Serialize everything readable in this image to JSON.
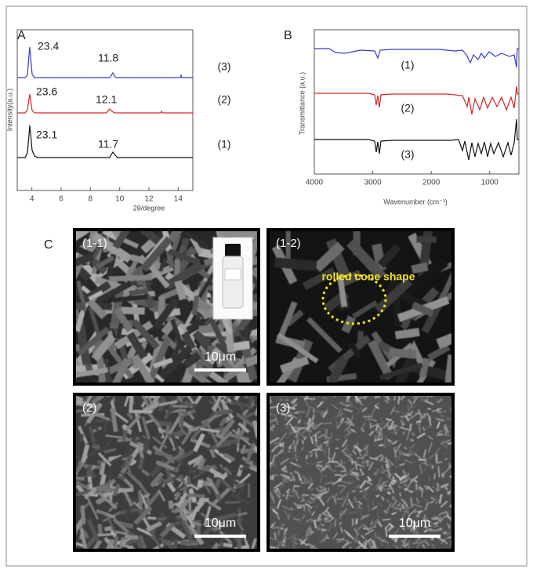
{
  "panel_a": {
    "label": "A",
    "x_label": "2θ/degree",
    "y_label": "Intensity(a.u.)",
    "xlim": [
      3,
      15
    ],
    "xticks": [
      4,
      6,
      8,
      10,
      12,
      14
    ],
    "annotations": [
      "23.4",
      "11.8",
      "(3)",
      "23.6",
      "12.1",
      "(2)",
      "23.1",
      "11.7",
      "(1)"
    ]
  },
  "panel_b": {
    "label": "B",
    "x_label": "Wavenumber (cm⁻¹)",
    "y_label": "Transmittance (a.u.)",
    "xlim": [
      4000,
      500
    ],
    "xticks": [
      4000,
      3000,
      2000,
      1000
    ],
    "annotations": [
      "(1)",
      "(2)",
      "(3)"
    ]
  },
  "panel_c": {
    "label": "C",
    "images": [
      {
        "label": "(1-1)",
        "scale_bar": "10μm"
      },
      {
        "label": "(1-2)",
        "annotation": "rolled cone shape"
      },
      {
        "label": "(2)",
        "scale_bar": "10μm"
      },
      {
        "label": "(3)",
        "scale_bar": "10μm"
      }
    ]
  }
}
